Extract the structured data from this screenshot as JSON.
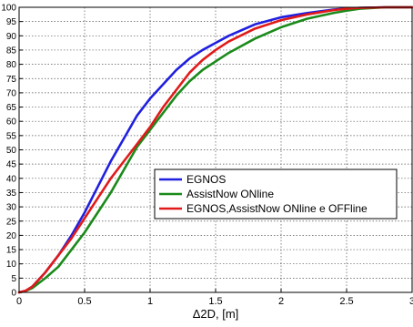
{
  "chart_data": {
    "type": "line",
    "title": "",
    "xlabel": "Δ2D, [m]",
    "ylabel": "",
    "xlim": [
      0,
      3
    ],
    "ylim": [
      0,
      100
    ],
    "grid": true,
    "legend_position": "inside center-right",
    "x_ticks": [
      "0",
      "0.5",
      "1",
      "1.5",
      "2",
      "2.5",
      "3"
    ],
    "y_ticks": [
      "0",
      "5",
      "10",
      "15",
      "20",
      "25",
      "30",
      "35",
      "40",
      "45",
      "50",
      "55",
      "60",
      "65",
      "70",
      "75",
      "80",
      "85",
      "90",
      "95",
      "100"
    ],
    "series": [
      {
        "name": "EGNOS",
        "color": "#1f1fe0",
        "x": [
          0,
          0.05,
          0.1,
          0.2,
          0.3,
          0.4,
          0.5,
          0.6,
          0.7,
          0.8,
          0.9,
          1.0,
          1.1,
          1.2,
          1.3,
          1.4,
          1.5,
          1.6,
          1.8,
          2.0,
          2.2,
          2.4,
          2.5,
          2.6,
          2.8,
          3.0
        ],
        "y": [
          0,
          0.5,
          2,
          7,
          13,
          20,
          28,
          37,
          46,
          54,
          62,
          68,
          73,
          78,
          82,
          85,
          87.5,
          90,
          94,
          96.5,
          98,
          99.2,
          99.6,
          99.8,
          100,
          100
        ]
      },
      {
        "name": "AssistNow ONline",
        "color": "#1a8a1a",
        "x": [
          0,
          0.05,
          0.1,
          0.2,
          0.3,
          0.4,
          0.5,
          0.6,
          0.7,
          0.8,
          0.9,
          1.0,
          1.1,
          1.2,
          1.3,
          1.4,
          1.5,
          1.6,
          1.8,
          2.0,
          2.2,
          2.4,
          2.5,
          2.6,
          2.8,
          3.0
        ],
        "y": [
          0,
          0.5,
          1.5,
          5,
          9,
          15,
          21,
          28,
          35,
          43,
          51,
          57,
          63,
          69,
          74,
          78,
          81,
          84,
          89,
          93,
          96,
          98,
          98.8,
          99.5,
          100,
          100
        ]
      },
      {
        "name": "EGNOS,AssistNow ONline e OFFline",
        "color": "#e01a1a",
        "x": [
          0,
          0.05,
          0.1,
          0.2,
          0.3,
          0.4,
          0.5,
          0.6,
          0.7,
          0.8,
          0.9,
          1.0,
          1.1,
          1.2,
          1.3,
          1.4,
          1.5,
          1.6,
          1.8,
          2.0,
          2.2,
          2.4,
          2.5,
          2.6,
          2.8,
          3.0
        ],
        "y": [
          0,
          0.6,
          2,
          7,
          13,
          19,
          26,
          33,
          40,
          46,
          52,
          58,
          65,
          71,
          77,
          81.5,
          85,
          88,
          92.5,
          95.5,
          97.5,
          99,
          99.5,
          99.8,
          100,
          100
        ]
      }
    ]
  }
}
